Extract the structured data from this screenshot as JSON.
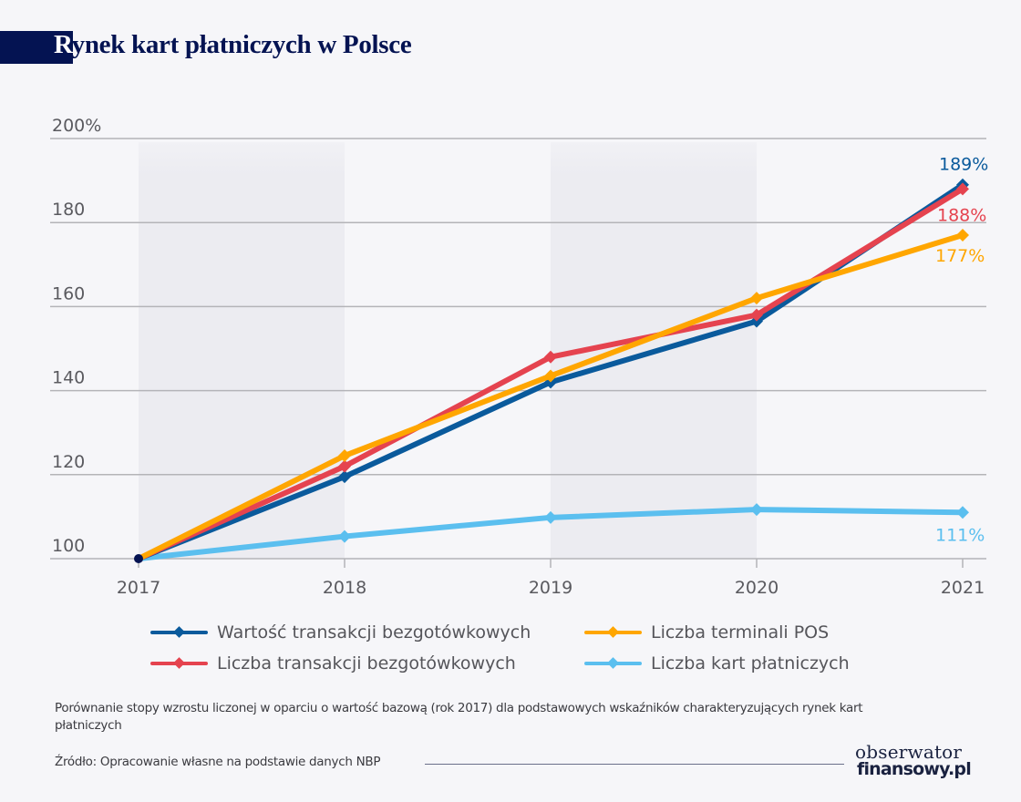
{
  "header": {
    "title_first_letter": "R",
    "title_rest": "ynek kart płatniczych w Polsce"
  },
  "chart_data": {
    "type": "line",
    "title": "Rynek kart płatniczych w Polsce",
    "xlabel": "",
    "ylabel": "",
    "x": [
      "2017",
      "2018",
      "2019",
      "2020",
      "2021"
    ],
    "ylim": [
      100,
      200
    ],
    "yticks": [
      100,
      120,
      140,
      160,
      180,
      200
    ],
    "ytick_labels": [
      "100",
      "120",
      "140",
      "160",
      "180",
      "200%"
    ],
    "grid": true,
    "shaded_bands": [
      [
        "2017",
        "2018"
      ],
      [
        "2019",
        "2020"
      ]
    ],
    "legend_position": "bottom",
    "series": [
      {
        "name": "Wartość transakcji bezgotówkowych",
        "color": "#0a5a9c",
        "values": [
          100,
          119.5,
          142,
          156.5,
          189
        ],
        "end_label": "189%"
      },
      {
        "name": "Liczba transakcji bezgotówkowych",
        "color": "#e5434f",
        "values": [
          100,
          122,
          148,
          158,
          188
        ],
        "end_label": "188%"
      },
      {
        "name": "Liczba terminali POS",
        "color": "#ffa600",
        "values": [
          100,
          124.5,
          143.5,
          162,
          177
        ],
        "end_label": "177%"
      },
      {
        "name": "Liczba kart płatniczych",
        "color": "#5bbfef",
        "values": [
          100,
          105.3,
          109.8,
          111.7,
          111
        ],
        "end_label": "111%"
      }
    ],
    "base_point_color": "#041352"
  },
  "note": "Porównanie stopy wzrostu liczonej w oparciu o wartość bazową (rok 2017) dla podstawowych wskaźników charakteryzujących rynek kart płatniczych",
  "source": "Źródło: Opracowanie własne na podstawie danych NBP",
  "logo": {
    "line1": "obserwator",
    "line2": "finansowy.pl"
  }
}
